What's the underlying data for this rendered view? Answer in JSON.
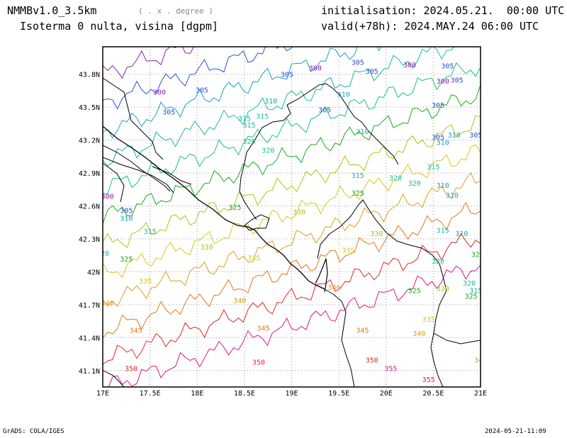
{
  "header": {
    "model": "NMMBv1.0_3.5km",
    "units": "( . x . degree )",
    "field": "Isoterma 0 nulta, visina [dgpm]",
    "init": "initialisation: 2024.05.21.  00:00 UTC",
    "valid": "valid(+78h): 2024.MAY.24 06:00 UTC"
  },
  "footer": {
    "left": "GrADS: COLA/IGES",
    "right": "2024-05-21-11:09"
  },
  "map": {
    "lon_range": [
      17,
      21
    ],
    "lat_range": [
      40.95,
      44.05
    ],
    "lon_ticks": [
      "17E",
      "17.5E",
      "18E",
      "18.5E",
      "19E",
      "19.5E",
      "20E",
      "20.5E",
      "21E"
    ],
    "lat_ticks": [
      "41.1N",
      "41.4N",
      "41.7N",
      "42N",
      "42.3N",
      "42.6N",
      "42.9N",
      "43.2N",
      "43.5N",
      "43.8N"
    ],
    "grid": "dotted",
    "contour_colors": {
      "300": "#8a1fa8",
      "305": "#2a4fd6",
      "310": "#1aa0c8",
      "315": "#18b8a0",
      "320": "#18c08a",
      "325": "#1ca81c",
      "330": "#a8c818",
      "335": "#d8c818",
      "340": "#d8a020",
      "345": "#e07818",
      "350": "#e02828",
      "355": "#d81888"
    },
    "contours": [
      {
        "level": "300",
        "labels": [
          [
            17.6,
            43.64
          ],
          [
            17.05,
            42.69
          ],
          [
            19.25,
            43.86
          ],
          [
            20.25,
            43.89
          ],
          [
            20.6,
            43.74
          ]
        ]
      },
      {
        "level": "305",
        "labels": [
          [
            18.05,
            43.66
          ],
          [
            17.7,
            43.46
          ],
          [
            17.25,
            42.56
          ],
          [
            18.95,
            43.8
          ],
          [
            19.7,
            43.91
          ],
          [
            19.85,
            43.83
          ],
          [
            20.65,
            43.88
          ],
          [
            20.75,
            43.75
          ],
          [
            20.55,
            43.52
          ],
          [
            19.35,
            43.48
          ],
          [
            20.55,
            43.23
          ],
          [
            20.95,
            43.25
          ]
        ]
      },
      {
        "level": "310",
        "labels": [
          [
            18.78,
            43.56
          ],
          [
            19.55,
            43.62
          ],
          [
            17.25,
            42.49
          ],
          [
            19.75,
            43.28
          ],
          [
            20.6,
            43.18
          ],
          [
            20.72,
            43.25
          ],
          [
            20.6,
            42.79
          ],
          [
            20.7,
            42.7
          ],
          [
            20.8,
            42.35
          ]
        ]
      },
      {
        "level": "315",
        "labels": [
          [
            18.5,
            43.4
          ],
          [
            18.55,
            43.34
          ],
          [
            18.69,
            43.42
          ],
          [
            17.5,
            42.37
          ],
          [
            19.7,
            42.88
          ],
          [
            20.5,
            42.96
          ],
          [
            20.6,
            42.38
          ],
          [
            20.95,
            41.83
          ]
        ]
      },
      {
        "level": "320",
        "labels": [
          [
            18.55,
            43.19
          ],
          [
            18.75,
            43.11
          ],
          [
            20.1,
            42.86
          ],
          [
            20.3,
            42.81
          ],
          [
            20.55,
            42.1
          ],
          [
            20.88,
            41.9
          ],
          [
            17.0,
            42.17
          ]
        ]
      },
      {
        "level": "325",
        "labels": [
          [
            17.25,
            42.12
          ],
          [
            18.4,
            42.59
          ],
          [
            19.7,
            42.72
          ],
          [
            20.3,
            41.83
          ],
          [
            20.97,
            42.16
          ],
          [
            20.9,
            41.78
          ]
        ]
      },
      {
        "level": "330",
        "labels": [
          [
            18.1,
            42.23
          ],
          [
            19.08,
            42.55
          ],
          [
            19.9,
            42.35
          ],
          [
            20.6,
            41.85
          ]
        ]
      },
      {
        "level": "335",
        "labels": [
          [
            17.45,
            41.92
          ],
          [
            18.6,
            42.13
          ],
          [
            19.6,
            42.2
          ],
          [
            20.45,
            41.57
          ]
        ]
      },
      {
        "level": "340",
        "labels": [
          [
            17.05,
            41.72
          ],
          [
            18.45,
            41.74
          ],
          [
            20.35,
            41.44
          ],
          [
            19.45,
            41.86
          ],
          [
            21.0,
            41.2
          ]
        ]
      },
      {
        "level": "345",
        "labels": [
          [
            17.35,
            41.47
          ],
          [
            18.7,
            41.49
          ],
          [
            19.75,
            41.47
          ]
        ]
      },
      {
        "level": "350",
        "labels": [
          [
            17.3,
            41.12
          ],
          [
            18.65,
            41.18
          ],
          [
            19.85,
            41.2
          ]
        ]
      },
      {
        "level": "355",
        "labels": [
          [
            20.05,
            41.12
          ],
          [
            20.45,
            41.02
          ]
        ]
      }
    ]
  }
}
